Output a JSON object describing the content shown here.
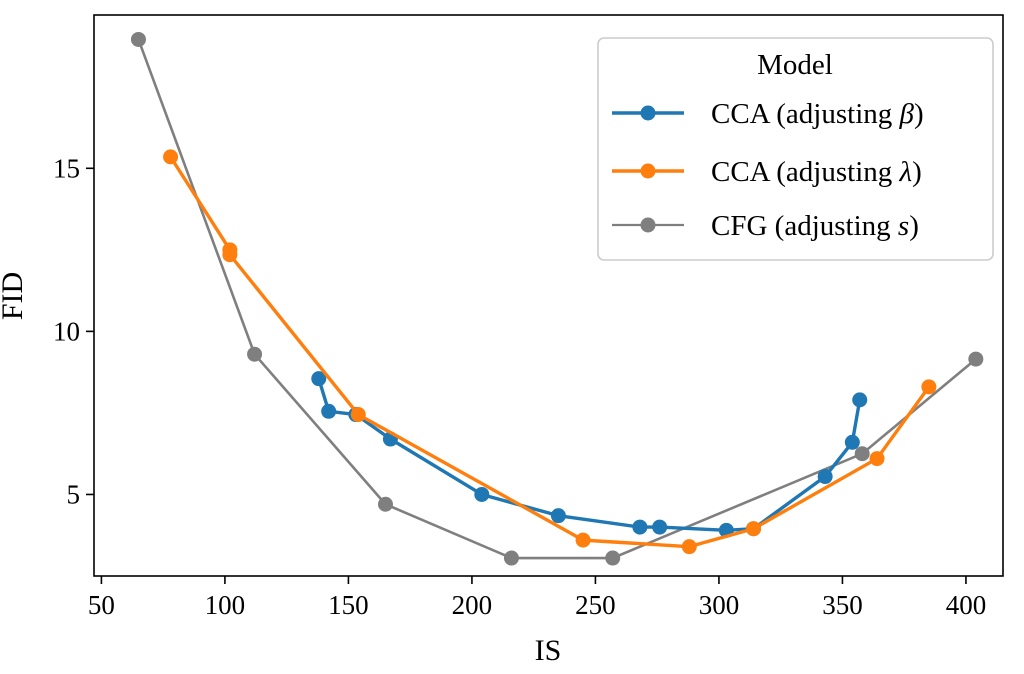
{
  "chart_data": {
    "type": "line",
    "xlabel": "IS",
    "ylabel": "FID",
    "xlim": [
      47,
      415
    ],
    "ylim": [
      2.5,
      19.7
    ],
    "xticks": [
      50,
      100,
      150,
      200,
      250,
      300,
      350,
      400
    ],
    "yticks": [
      5,
      10,
      15
    ],
    "grid": false,
    "legend": {
      "title": "Model",
      "position": "top-right"
    },
    "series": [
      {
        "name": "CCA (adjusting β)",
        "name_plain": "CCA (adjusting ",
        "name_symbol": "β",
        "color": "#1f77b4",
        "x": [
          138,
          142,
          153,
          167,
          204,
          235,
          268,
          276,
          303,
          314,
          343,
          354,
          357
        ],
        "y": [
          8.55,
          7.55,
          7.45,
          6.7,
          5.0,
          4.35,
          4.0,
          4.0,
          3.9,
          3.95,
          5.55,
          6.6,
          7.9
        ]
      },
      {
        "name": "CCA (adjusting λ)",
        "name_plain": "CCA (adjusting ",
        "name_symbol": "λ",
        "color": "#ff7f0e",
        "x": [
          78,
          102,
          102,
          154,
          245,
          288,
          314,
          364,
          385
        ],
        "y": [
          15.35,
          12.5,
          12.35,
          7.45,
          3.6,
          3.4,
          3.95,
          6.1,
          8.3
        ]
      },
      {
        "name": "CFG (adjusting s)",
        "name_plain": "CFG (adjusting ",
        "name_symbol": "s",
        "color": "#7f7f7f",
        "x": [
          65,
          112,
          165,
          216,
          257,
          358,
          404
        ],
        "y": [
          18.95,
          9.3,
          4.7,
          3.05,
          3.05,
          6.25,
          9.15
        ]
      }
    ]
  }
}
